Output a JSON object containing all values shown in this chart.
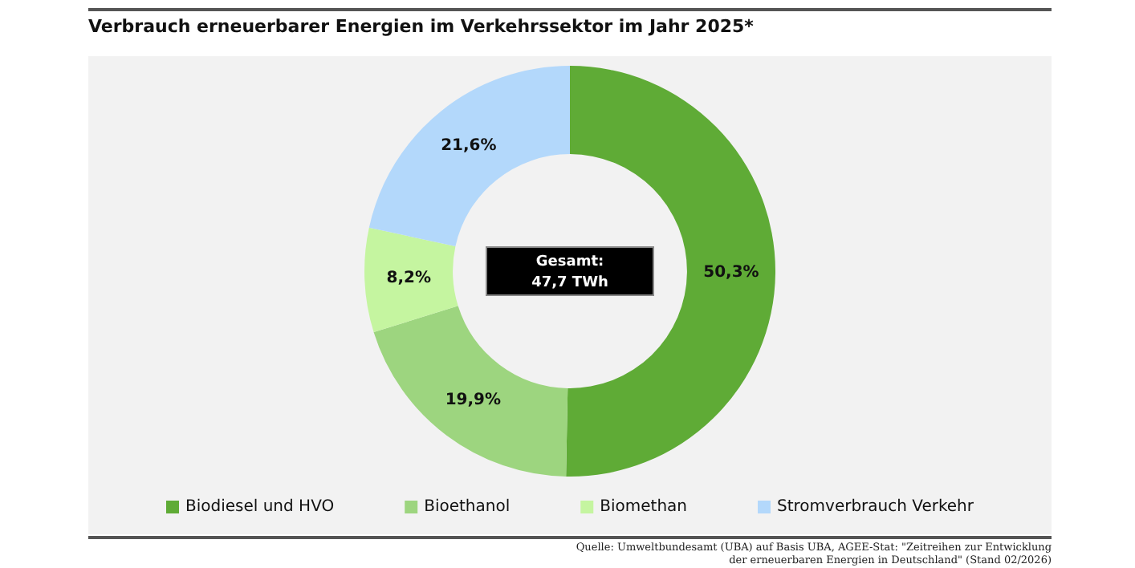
{
  "chart_data": {
    "type": "donut",
    "title": "Verbrauch erneuerbarer Energien im Verkehrssektor im Jahr 2025*",
    "categories": [
      "Biodiesel und HVO",
      "Bioethanol",
      "Biomethan",
      "Stromverbrauch Verkehr"
    ],
    "values": [
      50.3,
      19.9,
      8.2,
      21.6
    ],
    "colors": [
      "#5fab36",
      "#9dd57f",
      "#c5f5a0",
      "#b3d8fb"
    ],
    "value_labels": [
      "50,3%",
      "19,9%",
      "8,2%",
      "21,6%"
    ],
    "legend": "bottom",
    "annotations": [
      "Gesamt:",
      "47,7 TWh",
      "Quelle: Umweltbundesamt (UBA) auf Basis UBA, AGEE-Stat: \"Zeitreihen zur Entwicklung der erneuerbaren Energien in Deutschland\" (Stand 02/2026)"
    ]
  }
}
